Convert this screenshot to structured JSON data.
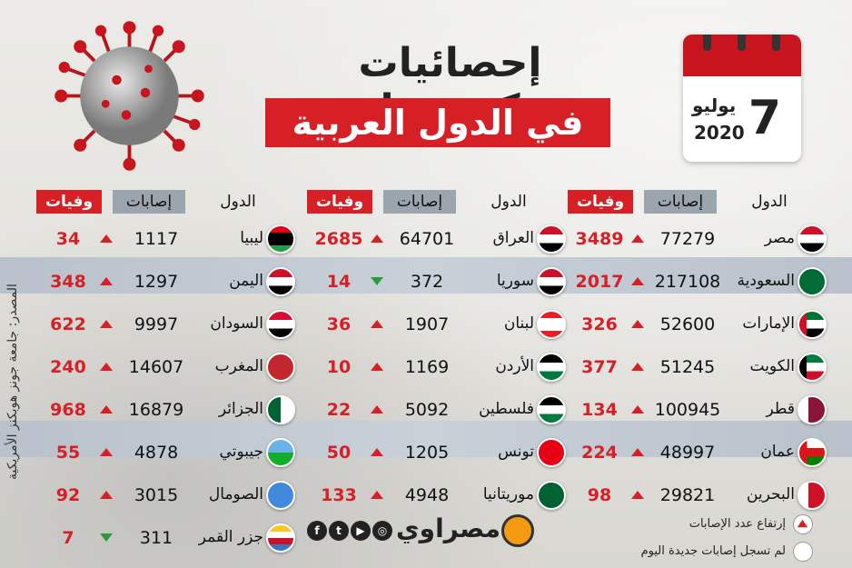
{
  "title_line1": "إحصائيات كـورونا",
  "title_line2": "في الدول العربية",
  "calendar": {
    "day": "7",
    "month": "يوليو",
    "year": "2020"
  },
  "headers": {
    "country": "الدول",
    "cases": "إصابات",
    "deaths": "وفيات"
  },
  "colors": {
    "accent_red": "#d71f26",
    "increase": "#d71f26",
    "no_new": "#2a9a3c",
    "band": "#b9c2cc"
  },
  "columns": [
    {
      "rows": [
        {
          "name": "مصر",
          "cases": "77279",
          "deaths": "3489",
          "trend": "up",
          "flag": "egypt"
        },
        {
          "name": "السعودية",
          "cases": "217108",
          "deaths": "2017",
          "trend": "up",
          "flag": "saudi"
        },
        {
          "name": "الإمارات",
          "cases": "52600",
          "deaths": "326",
          "trend": "up",
          "flag": "uae"
        },
        {
          "name": "الكويت",
          "cases": "51245",
          "deaths": "377",
          "trend": "up",
          "flag": "kuwait"
        },
        {
          "name": "قطر",
          "cases": "100945",
          "deaths": "134",
          "trend": "up",
          "flag": "qatar"
        },
        {
          "name": "عمان",
          "cases": "48997",
          "deaths": "224",
          "trend": "up",
          "flag": "oman"
        },
        {
          "name": "البحرين",
          "cases": "29821",
          "deaths": "98",
          "trend": "up",
          "flag": "bahrain"
        }
      ]
    },
    {
      "rows": [
        {
          "name": "العراق",
          "cases": "64701",
          "deaths": "2685",
          "trend": "up",
          "flag": "iraq"
        },
        {
          "name": "سوريا",
          "cases": "372",
          "deaths": "14",
          "trend": "down",
          "flag": "syria"
        },
        {
          "name": "لبنان",
          "cases": "1907",
          "deaths": "36",
          "trend": "up",
          "flag": "lebanon"
        },
        {
          "name": "الأردن",
          "cases": "1169",
          "deaths": "10",
          "trend": "up",
          "flag": "jordan"
        },
        {
          "name": "فلسطين",
          "cases": "5092",
          "deaths": "22",
          "trend": "up",
          "flag": "palestine"
        },
        {
          "name": "تونس",
          "cases": "1205",
          "deaths": "50",
          "trend": "up",
          "flag": "tunisia"
        },
        {
          "name": "موريتانيا",
          "cases": "4948",
          "deaths": "133",
          "trend": "up",
          "flag": "mauritania"
        }
      ]
    },
    {
      "rows": [
        {
          "name": "ليبيا",
          "cases": "1117",
          "deaths": "34",
          "trend": "up",
          "flag": "libya"
        },
        {
          "name": "اليمن",
          "cases": "1297",
          "deaths": "348",
          "trend": "up",
          "flag": "yemen"
        },
        {
          "name": "السودان",
          "cases": "9997",
          "deaths": "622",
          "trend": "up",
          "flag": "sudan"
        },
        {
          "name": "المغرب",
          "cases": "14607",
          "deaths": "240",
          "trend": "up",
          "flag": "morocco"
        },
        {
          "name": "الجزائر",
          "cases": "16879",
          "deaths": "968",
          "trend": "up",
          "flag": "algeria"
        },
        {
          "name": "جيبوتي",
          "cases": "4878",
          "deaths": "55",
          "trend": "up",
          "flag": "djibouti"
        },
        {
          "name": "الصومال",
          "cases": "3015",
          "deaths": "92",
          "trend": "up",
          "flag": "somalia"
        },
        {
          "name": "جزر القمر",
          "cases": "311",
          "deaths": "7",
          "trend": "down",
          "flag": "comoros"
        }
      ]
    }
  ],
  "source": "المصدر: جامعة جونز هوبكنز الأمريكية",
  "legend": {
    "up": "إرتفاع عدد الإصابات",
    "none": "لم تسجل إصابات جديدة اليوم"
  },
  "logo": "مصراوي",
  "social": [
    "f",
    "t",
    "▶",
    "◎"
  ]
}
